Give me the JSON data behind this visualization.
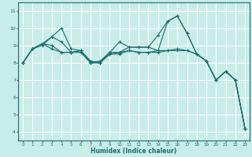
{
  "title": "",
  "xlabel": "Humidex (Indice chaleur)",
  "ylabel": "",
  "bg_color": "#c8ece8",
  "grid_color": "#ffffff",
  "line_color": "#1a6e6e",
  "xlim": [
    -0.5,
    23.5
  ],
  "ylim": [
    3.5,
    11.5
  ],
  "xticks": [
    0,
    1,
    2,
    3,
    4,
    5,
    6,
    7,
    8,
    9,
    10,
    11,
    12,
    13,
    14,
    15,
    16,
    17,
    18,
    19,
    20,
    21,
    22,
    23
  ],
  "yticks": [
    4,
    5,
    6,
    7,
    8,
    9,
    10,
    11
  ],
  "series": [
    [
      8.0,
      8.8,
      9.0,
      9.5,
      10.0,
      8.8,
      8.7,
      8.0,
      8.0,
      8.6,
      9.2,
      8.9,
      8.9,
      8.9,
      8.7,
      10.4,
      10.7,
      9.7,
      8.5,
      8.1,
      7.0,
      7.5,
      7.0,
      4.2
    ],
    [
      8.0,
      8.8,
      9.1,
      9.5,
      9.2,
      8.6,
      8.7,
      8.0,
      8.1,
      8.6,
      8.6,
      8.9,
      8.9,
      8.9,
      9.6,
      10.4,
      10.7,
      9.7,
      8.5,
      8.1,
      7.0,
      7.5,
      7.0,
      4.2
    ],
    [
      8.0,
      8.8,
      9.1,
      9.0,
      8.6,
      8.6,
      8.7,
      8.1,
      8.0,
      8.5,
      8.6,
      8.7,
      8.6,
      8.6,
      8.7,
      8.7,
      8.8,
      8.7,
      8.5,
      8.1,
      7.0,
      7.5,
      7.0,
      4.2
    ],
    [
      8.0,
      8.8,
      9.1,
      8.8,
      8.6,
      8.6,
      8.6,
      8.0,
      8.0,
      8.5,
      8.5,
      8.7,
      8.6,
      8.6,
      8.6,
      8.7,
      8.7,
      8.7,
      8.5,
      8.1,
      7.0,
      7.5,
      7.0,
      4.2
    ]
  ]
}
